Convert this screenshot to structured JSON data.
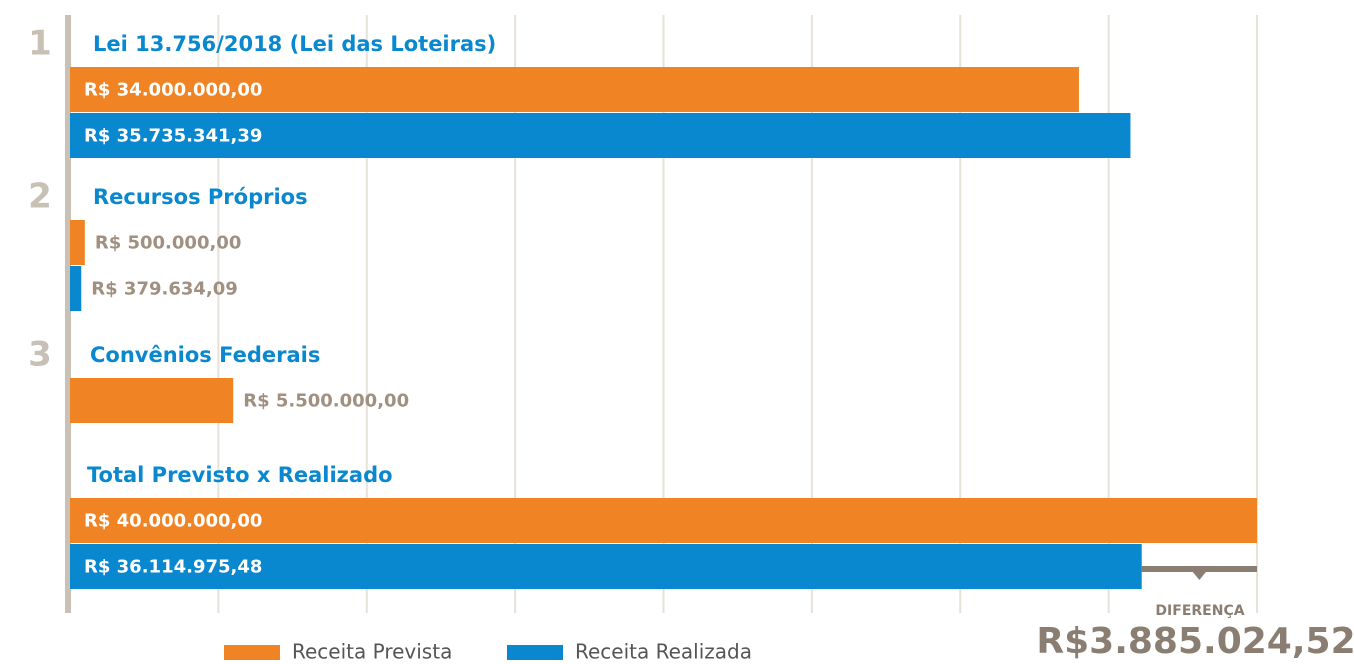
{
  "chart_data": {
    "type": "bar",
    "orientation": "horizontal",
    "group_numbers": [
      "1",
      "2",
      "3",
      null
    ],
    "categories": [
      "Lei 13.756/2018 (Lei das Loteiras)",
      "Recursos Próprios",
      "Convênios Federais",
      "Total Previsto x Realizado"
    ],
    "series": [
      {
        "name": "Receita Prevista",
        "color": "#f08424",
        "values": [
          34000000,
          500000,
          5500000,
          40000000
        ],
        "value_labels": [
          "R$ 34.000.000,00",
          "R$ 500.000,00",
          "R$ 5.500.000,00",
          "R$ 40.000.000,00"
        ]
      },
      {
        "name": "Receita Realizada",
        "color": "#0a88cf",
        "values": [
          35735341.39,
          379634.09,
          null,
          36114975.48
        ],
        "value_labels": [
          "R$ 35.735.341,39",
          "R$ 379.634,09",
          null,
          "R$ 36.114.975,48"
        ]
      }
    ],
    "xlim": [
      0,
      40000000
    ],
    "xticks": [
      5000000,
      10000000,
      15000000,
      20000000,
      25000000,
      30000000,
      35000000,
      40000000
    ],
    "grid": true,
    "difference": {
      "label": "DIFERENÇA",
      "value": 3885024.52,
      "value_label": "R$3.885.024,52"
    }
  }
}
